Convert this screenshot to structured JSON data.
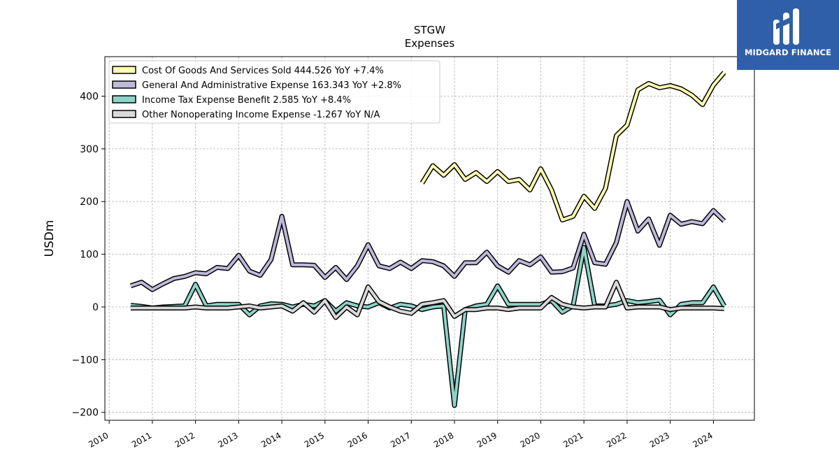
{
  "chart_data": {
    "type": "line",
    "title": "STGW",
    "subtitle": "Expenses",
    "ylabel": "USDm",
    "xlabel": "",
    "ylim": [
      -215,
      475
    ],
    "xlim": [
      2009.9,
      2024.95
    ],
    "yticks": [
      -200,
      -100,
      0,
      100,
      200,
      300,
      400
    ],
    "xticks": [
      "2010",
      "2011",
      "2012",
      "2013",
      "2014",
      "2015",
      "2016",
      "2017",
      "2018",
      "2019",
      "2020",
      "2021",
      "2022",
      "2023",
      "2024"
    ],
    "grid": true,
    "legend_position": "top-left",
    "series": [
      {
        "name": "Cost Of Goods And Services Sold  444.526 YoY +7.4%",
        "color": "#ffffb3",
        "points": [
          [
            2017.25,
            235
          ],
          [
            2017.5,
            268
          ],
          [
            2017.75,
            250
          ],
          [
            2018.0,
            270
          ],
          [
            2018.25,
            242
          ],
          [
            2018.5,
            255
          ],
          [
            2018.75,
            238
          ],
          [
            2019.0,
            257
          ],
          [
            2019.25,
            238
          ],
          [
            2019.5,
            242
          ],
          [
            2019.75,
            222
          ],
          [
            2020.0,
            262
          ],
          [
            2020.25,
            222
          ],
          [
            2020.5,
            165
          ],
          [
            2020.75,
            172
          ],
          [
            2021.0,
            210
          ],
          [
            2021.25,
            187
          ],
          [
            2021.5,
            225
          ],
          [
            2021.75,
            325
          ],
          [
            2022.0,
            345
          ],
          [
            2022.25,
            412
          ],
          [
            2022.5,
            424
          ],
          [
            2022.75,
            416
          ],
          [
            2023.0,
            420
          ],
          [
            2023.25,
            414
          ],
          [
            2023.5,
            402
          ],
          [
            2023.75,
            384
          ],
          [
            2024.0,
            421
          ],
          [
            2024.25,
            445
          ]
        ]
      },
      {
        "name": "General And Administrative Expense  163.343 YoY +2.8%",
        "color": "#bebada",
        "points": [
          [
            2010.5,
            40
          ],
          [
            2010.75,
            47
          ],
          [
            2011.0,
            33
          ],
          [
            2011.25,
            44
          ],
          [
            2011.5,
            54
          ],
          [
            2011.75,
            58
          ],
          [
            2012.0,
            65
          ],
          [
            2012.25,
            63
          ],
          [
            2012.5,
            75
          ],
          [
            2012.75,
            73
          ],
          [
            2013.0,
            98
          ],
          [
            2013.25,
            68
          ],
          [
            2013.5,
            60
          ],
          [
            2013.75,
            90
          ],
          [
            2014.0,
            172
          ],
          [
            2014.25,
            80
          ],
          [
            2014.5,
            80
          ],
          [
            2014.75,
            79
          ],
          [
            2015.0,
            56
          ],
          [
            2015.25,
            75
          ],
          [
            2015.5,
            52
          ],
          [
            2015.75,
            78
          ],
          [
            2016.0,
            118
          ],
          [
            2016.25,
            78
          ],
          [
            2016.5,
            73
          ],
          [
            2016.75,
            85
          ],
          [
            2017.0,
            73
          ],
          [
            2017.25,
            88
          ],
          [
            2017.5,
            86
          ],
          [
            2017.75,
            78
          ],
          [
            2018.0,
            58
          ],
          [
            2018.25,
            84
          ],
          [
            2018.5,
            84
          ],
          [
            2018.75,
            104
          ],
          [
            2019.0,
            78
          ],
          [
            2019.25,
            66
          ],
          [
            2019.5,
            88
          ],
          [
            2019.75,
            80
          ],
          [
            2020.0,
            95
          ],
          [
            2020.25,
            66
          ],
          [
            2020.5,
            67
          ],
          [
            2020.75,
            74
          ],
          [
            2021.0,
            138
          ],
          [
            2021.25,
            84
          ],
          [
            2021.5,
            81
          ],
          [
            2021.75,
            122
          ],
          [
            2022.0,
            200
          ],
          [
            2022.25,
            144
          ],
          [
            2022.5,
            167
          ],
          [
            2022.75,
            117
          ],
          [
            2023.0,
            174
          ],
          [
            2023.25,
            157
          ],
          [
            2023.5,
            162
          ],
          [
            2023.75,
            158
          ],
          [
            2024.0,
            183
          ],
          [
            2024.25,
            163
          ]
        ]
      },
      {
        "name": "Income Tax Expense Benefit  2.585 YoY +8.4%",
        "color": "#8dd3c7",
        "points": [
          [
            2010.5,
            3
          ],
          [
            2010.75,
            1
          ],
          [
            2011.0,
            -2
          ],
          [
            2011.25,
            0
          ],
          [
            2011.5,
            1
          ],
          [
            2011.75,
            2
          ],
          [
            2012.0,
            43
          ],
          [
            2012.25,
            2
          ],
          [
            2012.5,
            5
          ],
          [
            2012.75,
            5
          ],
          [
            2013.0,
            5
          ],
          [
            2013.25,
            -15
          ],
          [
            2013.5,
            2
          ],
          [
            2013.75,
            6
          ],
          [
            2014.0,
            5
          ],
          [
            2014.25,
            0
          ],
          [
            2014.5,
            5
          ],
          [
            2014.75,
            2
          ],
          [
            2015.0,
            12
          ],
          [
            2015.25,
            -8
          ],
          [
            2015.5,
            8
          ],
          [
            2015.75,
            2
          ],
          [
            2016.0,
            0
          ],
          [
            2016.25,
            8
          ],
          [
            2016.5,
            -2
          ],
          [
            2016.75,
            5
          ],
          [
            2017.0,
            2
          ],
          [
            2017.25,
            -5
          ],
          [
            2017.5,
            0
          ],
          [
            2017.75,
            2
          ],
          [
            2018.0,
            -187
          ],
          [
            2018.25,
            -5
          ],
          [
            2018.5,
            2
          ],
          [
            2018.75,
            5
          ],
          [
            2019.0,
            40
          ],
          [
            2019.25,
            5
          ],
          [
            2019.5,
            5
          ],
          [
            2019.75,
            5
          ],
          [
            2020.0,
            5
          ],
          [
            2020.25,
            12
          ],
          [
            2020.5,
            -10
          ],
          [
            2020.75,
            2
          ],
          [
            2021.0,
            113
          ],
          [
            2021.25,
            2
          ],
          [
            2021.5,
            2
          ],
          [
            2021.75,
            5
          ],
          [
            2022.0,
            12
          ],
          [
            2022.25,
            8
          ],
          [
            2022.5,
            10
          ],
          [
            2022.75,
            13
          ],
          [
            2023.0,
            -15
          ],
          [
            2023.25,
            5
          ],
          [
            2023.5,
            8
          ],
          [
            2023.75,
            8
          ],
          [
            2024.0,
            38
          ],
          [
            2024.25,
            2
          ]
        ]
      },
      {
        "name": "Other Nonoperating Income Expense  -1.267 YoY N/A",
        "color": "#d9d9d9",
        "points": [
          [
            2010.5,
            -2
          ],
          [
            2010.75,
            -2
          ],
          [
            2011.0,
            -2
          ],
          [
            2011.25,
            -2
          ],
          [
            2011.5,
            -2
          ],
          [
            2011.75,
            -2
          ],
          [
            2012.0,
            0
          ],
          [
            2012.25,
            -2
          ],
          [
            2012.5,
            -2
          ],
          [
            2012.75,
            -2
          ],
          [
            2013.0,
            0
          ],
          [
            2013.25,
            2
          ],
          [
            2013.5,
            -2
          ],
          [
            2013.75,
            0
          ],
          [
            2014.0,
            2
          ],
          [
            2014.25,
            -8
          ],
          [
            2014.5,
            8
          ],
          [
            2014.75,
            -10
          ],
          [
            2015.0,
            12
          ],
          [
            2015.25,
            -20
          ],
          [
            2015.5,
            0
          ],
          [
            2015.75,
            -15
          ],
          [
            2016.0,
            38
          ],
          [
            2016.25,
            10
          ],
          [
            2016.5,
            0
          ],
          [
            2016.75,
            -8
          ],
          [
            2017.0,
            -12
          ],
          [
            2017.25,
            5
          ],
          [
            2017.5,
            8
          ],
          [
            2017.75,
            12
          ],
          [
            2018.0,
            -18
          ],
          [
            2018.25,
            -5
          ],
          [
            2018.5,
            -5
          ],
          [
            2018.75,
            -2
          ],
          [
            2019.0,
            -2
          ],
          [
            2019.25,
            -5
          ],
          [
            2019.5,
            -2
          ],
          [
            2019.75,
            -2
          ],
          [
            2020.0,
            -2
          ],
          [
            2020.25,
            18
          ],
          [
            2020.5,
            5
          ],
          [
            2020.75,
            0
          ],
          [
            2021.0,
            -2
          ],
          [
            2021.25,
            0
          ],
          [
            2021.5,
            0
          ],
          [
            2021.75,
            47
          ],
          [
            2022.0,
            -2
          ],
          [
            2022.25,
            0
          ],
          [
            2022.5,
            0
          ],
          [
            2022.75,
            0
          ],
          [
            2023.0,
            -5
          ],
          [
            2023.25,
            -2
          ],
          [
            2023.5,
            -2
          ],
          [
            2023.75,
            -2
          ],
          [
            2024.0,
            -2
          ],
          [
            2024.25,
            -3
          ]
        ]
      }
    ]
  },
  "logo": {
    "name": "MIDGARD FINANCE",
    "icon": "midgard-logo-icon",
    "color": "#2f5fa8"
  }
}
